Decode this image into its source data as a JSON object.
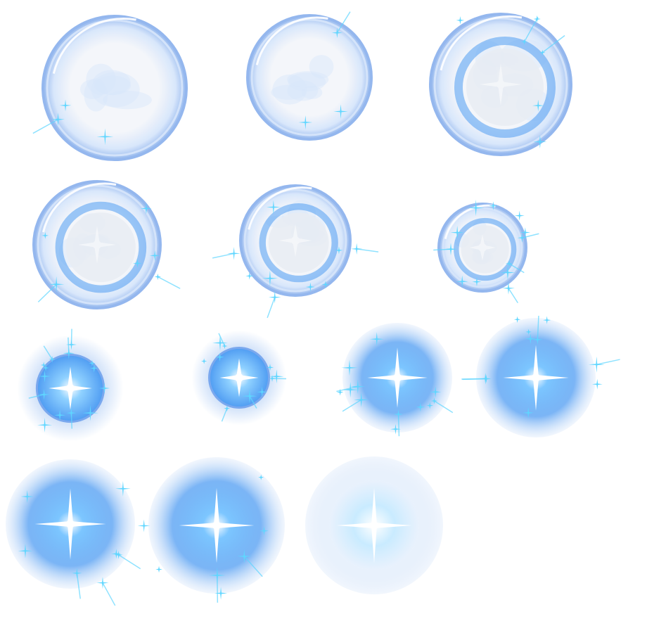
{
  "sheet": {
    "background": "#ffffff",
    "palette": {
      "shell": "#8fb4ee",
      "shell_light": "#d7e6fb",
      "core": "#f4f6fa",
      "glow": "#4f9cf2",
      "glow_soft": "#c8dcf8",
      "spark": "#5fd6ff",
      "flare": "#ffffff"
    },
    "frames": [
      {
        "stage": "shell-orb",
        "sparkles": 3
      },
      {
        "stage": "shell-orb",
        "sparkles": 3
      },
      {
        "stage": "ringed-orb",
        "sparkles": 6
      },
      {
        "stage": "ringed-orb",
        "sparkles": 6
      },
      {
        "stage": "ringed-orb",
        "sparkles": 9
      },
      {
        "stage": "ringed-orb",
        "sparkles": 12
      },
      {
        "stage": "energy-core",
        "sparkles": 14
      },
      {
        "stage": "energy-core",
        "sparkles": 10
      },
      {
        "stage": "glow-burst",
        "sparkles": 12
      },
      {
        "stage": "glow-burst",
        "sparkles": 10
      },
      {
        "stage": "glow-burst",
        "sparkles": 8
      },
      {
        "stage": "glow-burst",
        "sparkles": 6
      },
      {
        "stage": "fading-glow",
        "sparkles": 0
      }
    ]
  }
}
